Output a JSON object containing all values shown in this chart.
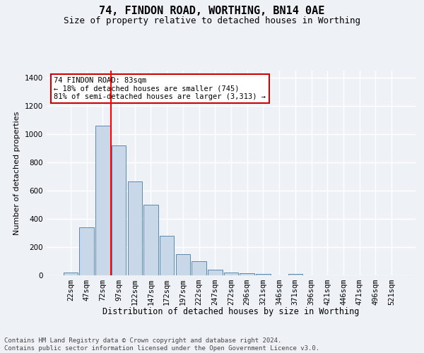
{
  "title": "74, FINDON ROAD, WORTHING, BN14 0AE",
  "subtitle": "Size of property relative to detached houses in Worthing",
  "xlabel": "Distribution of detached houses by size in Worthing",
  "ylabel": "Number of detached properties",
  "categories": [
    "22sqm",
    "47sqm",
    "72sqm",
    "97sqm",
    "122sqm",
    "147sqm",
    "172sqm",
    "197sqm",
    "222sqm",
    "247sqm",
    "272sqm",
    "296sqm",
    "321sqm",
    "346sqm",
    "371sqm",
    "396sqm",
    "421sqm",
    "446sqm",
    "471sqm",
    "496sqm",
    "521sqm"
  ],
  "values": [
    18,
    338,
    1060,
    920,
    665,
    500,
    280,
    148,
    100,
    40,
    22,
    15,
    10,
    0,
    12,
    0,
    0,
    0,
    0,
    0,
    0
  ],
  "bar_color": "#c8d8e8",
  "bar_edge_color": "#5a8ab0",
  "red_line_index": 2,
  "annotation_text": "74 FINDON ROAD: 83sqm\n← 18% of detached houses are smaller (745)\n81% of semi-detached houses are larger (3,313) →",
  "annotation_box_color": "#ffffff",
  "annotation_box_edge": "#cc0000",
  "ylim": [
    0,
    1450
  ],
  "yticks": [
    0,
    200,
    400,
    600,
    800,
    1000,
    1200,
    1400
  ],
  "background_color": "#eef2f7",
  "grid_color": "#ffffff",
  "footer": "Contains HM Land Registry data © Crown copyright and database right 2024.\nContains public sector information licensed under the Open Government Licence v3.0.",
  "title_fontsize": 11,
  "subtitle_fontsize": 9,
  "xlabel_fontsize": 8.5,
  "ylabel_fontsize": 8,
  "tick_fontsize": 7.5,
  "footer_fontsize": 6.5
}
